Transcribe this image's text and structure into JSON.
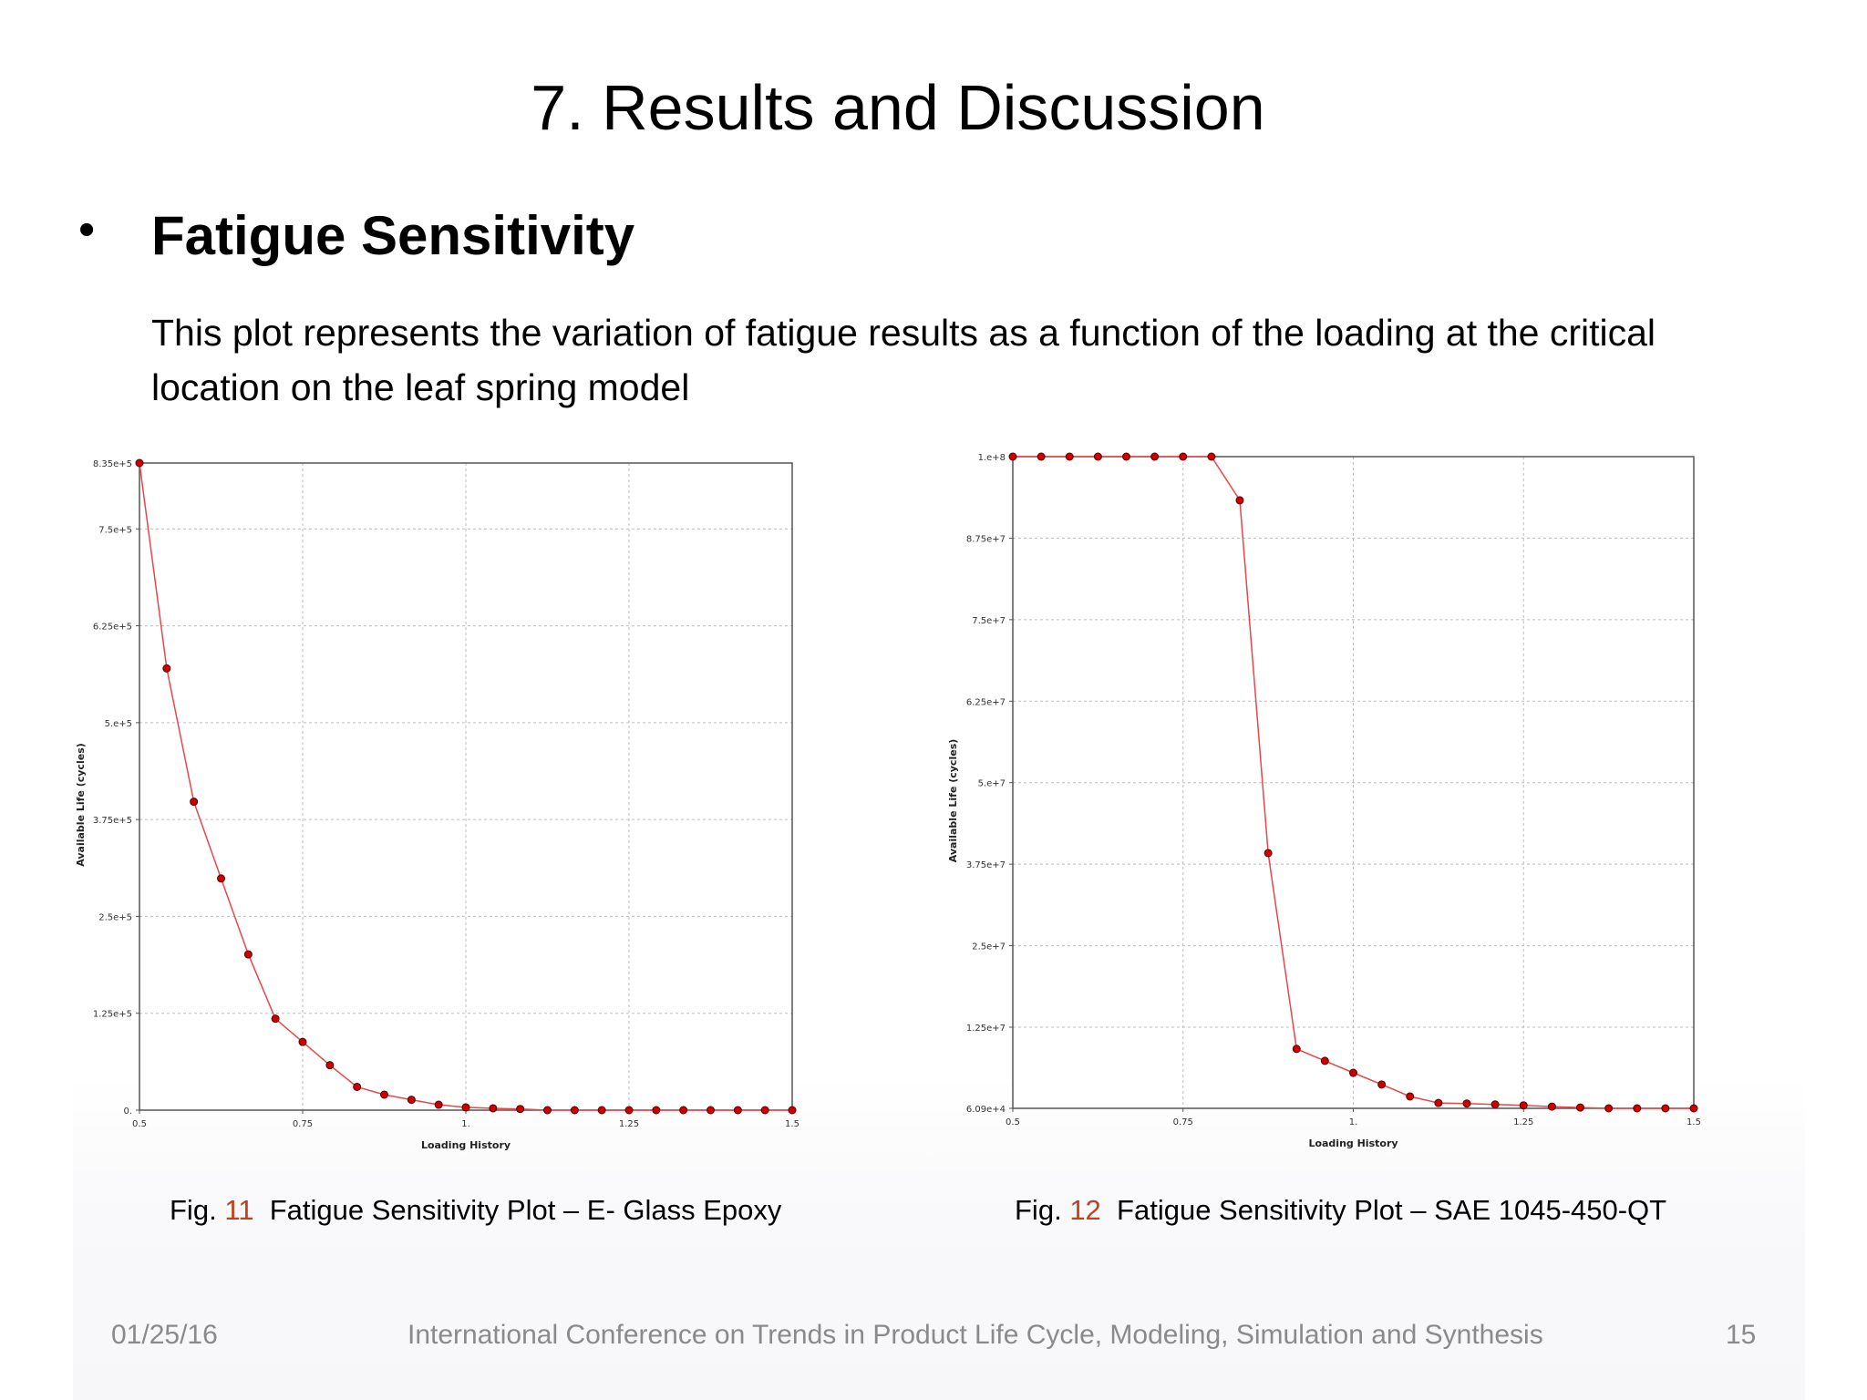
{
  "slide": {
    "title": "7. Results and Discussion",
    "bullet_symbol": "•",
    "heading": "Fatigue Sensitivity",
    "body": "This plot represents the variation of fatigue results as a function of the loading at the critical location on the leaf spring model",
    "colors": {
      "text": "#000000",
      "figure_number": "#c0421a",
      "footer_text": "#8a8a8a",
      "series_line": "#e8474a",
      "series_marker": "#cc0000"
    }
  },
  "captions": [
    {
      "prefix": "Fig.",
      "number": "11",
      "text": "Fatigue Sensitivity Plot – E- Glass Epoxy"
    },
    {
      "prefix": "Fig.",
      "number": "12",
      "text": "Fatigue Sensitivity Plot – SAE 1045-450-QT"
    }
  ],
  "footer": {
    "date": "01/25/16",
    "conference": "International Conference on Trends  in Product Life Cycle, Modeling, Simulation and Synthesis",
    "page_number": "15"
  },
  "chart_data": [
    {
      "type": "line",
      "title": "Fatigue Sensitivity Plot – E- Glass Epoxy",
      "xlabel": "Loading History",
      "ylabel": "Available Life (cycles)",
      "xlim": [
        0.5,
        1.5
      ],
      "ylim": [
        0,
        835000
      ],
      "x_ticks": [
        0.5,
        0.75,
        1.0,
        1.25,
        1.5
      ],
      "x_tick_labels": [
        "0.5",
        "0.75",
        "1.",
        "1.25",
        "1.5"
      ],
      "y_ticks": [
        0,
        125000,
        250000,
        375000,
        500000,
        625000,
        750000,
        835000
      ],
      "y_tick_labels": [
        "0.",
        "1.25e+5",
        "2.5e+5",
        "3.75e+5",
        "5.e+5",
        "6.25e+5",
        "7.5e+5",
        "8.35e+5"
      ],
      "grid": true,
      "legend": null,
      "series": [
        {
          "name": "Available Life",
          "x": [
            0.5,
            0.5417,
            0.5833,
            0.625,
            0.6667,
            0.7083,
            0.75,
            0.7917,
            0.8333,
            0.875,
            0.9167,
            0.9583,
            1.0,
            1.0417,
            1.0833,
            1.125,
            1.1667,
            1.2083,
            1.25,
            1.2917,
            1.3333,
            1.375,
            1.4167,
            1.4583,
            1.5
          ],
          "values": [
            835000,
            570000,
            398000,
            299000,
            201000,
            118000,
            88000,
            58000,
            30000,
            20000,
            13400,
            7000,
            3600,
            2400,
            1500,
            0,
            0,
            0,
            0,
            0,
            0,
            0,
            0,
            0,
            0
          ]
        }
      ]
    },
    {
      "type": "line",
      "title": "Fatigue Sensitivity Plot – SAE 1045-450-QT",
      "xlabel": "Loading History",
      "ylabel": "Available Life (cycles)",
      "xlim": [
        0.5,
        1.5
      ],
      "ylim": [
        60900,
        100000000
      ],
      "x_ticks": [
        0.5,
        0.75,
        1.0,
        1.25,
        1.5
      ],
      "x_tick_labels": [
        "0.5",
        "0.75",
        "1.",
        "1.25",
        "1.5"
      ],
      "y_ticks": [
        60900,
        12500000,
        25000000,
        37500000,
        50000000,
        62500000,
        75000000,
        87500000,
        100000000
      ],
      "y_tick_labels": [
        "6.09e+4",
        "1.25e+7",
        "2.5e+7",
        "3.75e+7",
        "5.e+7",
        "6.25e+7",
        "7.5e+7",
        "8.75e+7",
        "1.e+8"
      ],
      "grid": true,
      "legend": null,
      "series": [
        {
          "name": "Available Life",
          "x": [
            0.5,
            0.5417,
            0.5833,
            0.625,
            0.6667,
            0.7083,
            0.75,
            0.7917,
            0.8333,
            0.875,
            0.9167,
            0.9583,
            1.0,
            1.0417,
            1.0833,
            1.125,
            1.1667,
            1.2083,
            1.25,
            1.2917,
            1.3333,
            1.375,
            1.4167,
            1.4583,
            1.5
          ],
          "values": [
            100000000,
            100000000,
            100000000,
            100000000,
            100000000,
            100000000,
            100000000,
            100000000,
            93300000,
            39200000,
            9180000,
            7340000,
            5510000,
            3720000,
            1880000,
            890000,
            800000,
            660000,
            520000,
            330000,
            190000,
            60900,
            60900,
            60900,
            60900
          ]
        }
      ]
    }
  ]
}
